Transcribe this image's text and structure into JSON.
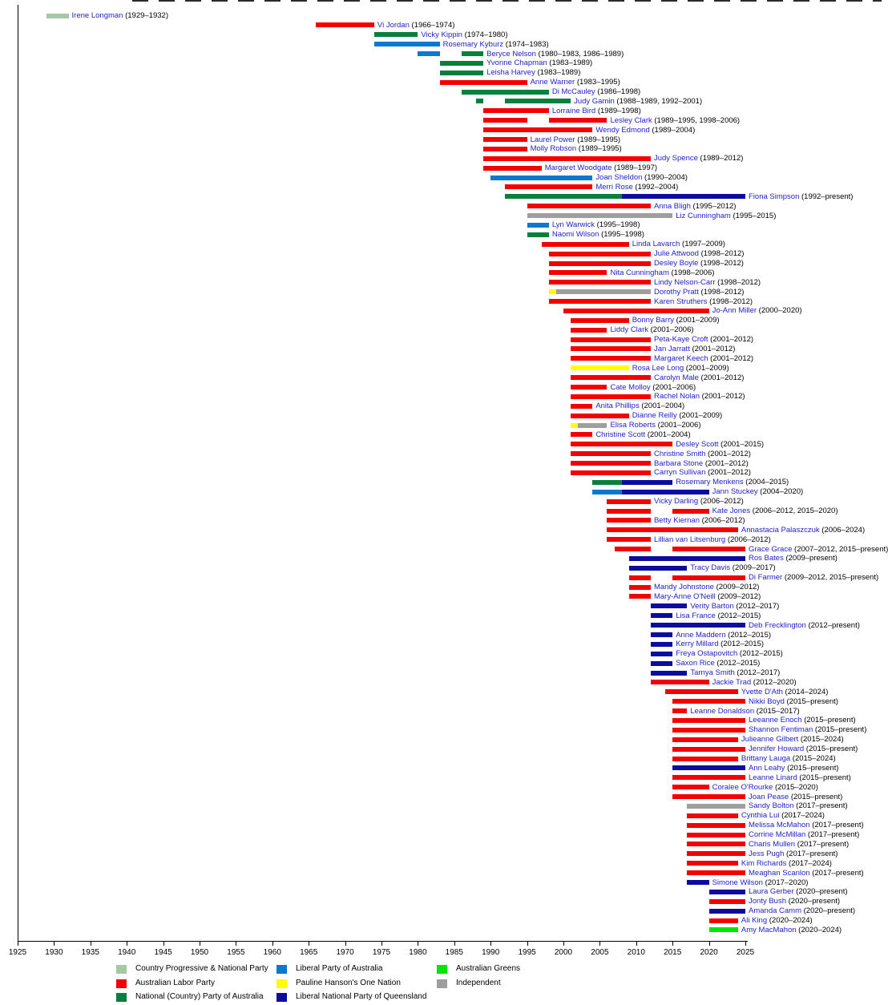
{
  "chart_data": {
    "type": "bar",
    "variant": "timeline-gantt",
    "grid": false,
    "legend_position": "bottom",
    "present_label": "present",
    "x_axis": {
      "start": 1925,
      "end": 2025,
      "tick_interval": 5,
      "ticks": [
        1925,
        1930,
        1935,
        1940,
        1945,
        1950,
        1955,
        1960,
        1965,
        1970,
        1975,
        1980,
        1985,
        1990,
        1995,
        2000,
        2005,
        2010,
        2015,
        2020,
        2025
      ]
    },
    "parties": {
      "CPNP": {
        "label": "Country Progressive & National Party",
        "color": "#a5c8a5"
      },
      "ALP": {
        "label": "Australian Labor Party",
        "color": "#f40000"
      },
      "NAT": {
        "label": "National (Country) Party of Australia",
        "color": "#07803e"
      },
      "LIB": {
        "label": "Liberal Party of Australia",
        "color": "#0d78cf"
      },
      "ONP": {
        "label": "Pauline Hanson's One Nation",
        "color": "#ffff00"
      },
      "LNP": {
        "label": "Liberal National Party of Queensland",
        "color": "#0c0c9e"
      },
      "GRN": {
        "label": "Australian Greens",
        "color": "#00e600"
      },
      "IND": {
        "label": "Independent",
        "color": "#9e9e9e"
      }
    },
    "legend_columns": [
      [
        "CPNP",
        "ALP",
        "NAT"
      ],
      [
        "LIB",
        "ONP",
        "LNP"
      ],
      [
        "GRN",
        "IND"
      ]
    ],
    "link_color": "#2222cc",
    "members": [
      {
        "n": "Irene Longman",
        "d": "1929–1932",
        "s": [
          [
            "CPNP",
            1929,
            1932
          ]
        ]
      },
      {
        "n": "Vi Jordan",
        "d": "1966–1974",
        "s": [
          [
            "ALP",
            1966,
            1974
          ]
        ]
      },
      {
        "n": "Vicky Kippin",
        "d": "1974–1980",
        "s": [
          [
            "NAT",
            1974,
            1980
          ]
        ]
      },
      {
        "n": "Rosemary Kyburz",
        "d": "1974–1983",
        "s": [
          [
            "LIB",
            1974,
            1983
          ]
        ]
      },
      {
        "n": "Beryce Nelson",
        "d": "1980–1983, 1986–1989",
        "s": [
          [
            "LIB",
            1980,
            1983
          ],
          [
            "NAT",
            1986,
            1989
          ]
        ]
      },
      {
        "n": "Yvonne Chapman",
        "d": "1983–1989",
        "s": [
          [
            "NAT",
            1983,
            1989
          ]
        ]
      },
      {
        "n": "Leisha Harvey",
        "d": "1983–1989",
        "s": [
          [
            "NAT",
            1983,
            1989
          ]
        ]
      },
      {
        "n": "Anne Warner",
        "d": "1983–1995",
        "s": [
          [
            "ALP",
            1983,
            1995
          ]
        ]
      },
      {
        "n": "Di McCauley",
        "d": "1986–1998",
        "s": [
          [
            "NAT",
            1986,
            1998
          ]
        ]
      },
      {
        "n": "Judy Gamin",
        "d": "1988–1989, 1992–2001",
        "s": [
          [
            "NAT",
            1988,
            1989
          ],
          [
            "NAT",
            1992,
            2001
          ]
        ]
      },
      {
        "n": "Lorraine Bird",
        "d": "1989–1998",
        "s": [
          [
            "ALP",
            1989,
            1998
          ]
        ]
      },
      {
        "n": "Lesley Clark",
        "d": "1989–1995, 1998–2006",
        "s": [
          [
            "ALP",
            1989,
            1995
          ],
          [
            "ALP",
            1998,
            2006
          ]
        ]
      },
      {
        "n": "Wendy Edmond",
        "d": "1989–2004",
        "s": [
          [
            "ALP",
            1989,
            2004
          ]
        ]
      },
      {
        "n": "Laurel Power",
        "d": "1989–1995",
        "s": [
          [
            "ALP",
            1989,
            1995
          ]
        ]
      },
      {
        "n": "Molly Robson",
        "d": "1989–1995",
        "s": [
          [
            "ALP",
            1989,
            1995
          ]
        ]
      },
      {
        "n": "Judy Spence",
        "d": "1989–2012",
        "s": [
          [
            "ALP",
            1989,
            2012
          ]
        ]
      },
      {
        "n": "Margaret Woodgate",
        "d": "1989–1997",
        "s": [
          [
            "ALP",
            1989,
            1997
          ]
        ]
      },
      {
        "n": "Joan Sheldon",
        "d": "1990–2004",
        "s": [
          [
            "LIB",
            1990,
            2004
          ]
        ]
      },
      {
        "n": "Merri Rose",
        "d": "1992–2004",
        "s": [
          [
            "ALP",
            1992,
            2004
          ]
        ]
      },
      {
        "n": "Fiona Simpson",
        "d": "1992–present",
        "s": [
          [
            "NAT",
            1992,
            2008
          ],
          [
            "LNP",
            2008,
            2025
          ]
        ]
      },
      {
        "n": "Anna Bligh",
        "d": "1995–2012",
        "s": [
          [
            "ALP",
            1995,
            2012
          ]
        ]
      },
      {
        "n": "Liz Cunningham",
        "d": "1995–2015",
        "s": [
          [
            "IND",
            1995,
            2015
          ]
        ]
      },
      {
        "n": "Lyn Warwick",
        "d": "1995–1998",
        "s": [
          [
            "LIB",
            1995,
            1998
          ]
        ]
      },
      {
        "n": "Naomi Wilson",
        "d": "1995–1998",
        "s": [
          [
            "NAT",
            1995,
            1998
          ]
        ]
      },
      {
        "n": "Linda Lavarch",
        "d": "1997–2009",
        "s": [
          [
            "ALP",
            1997,
            2009
          ]
        ]
      },
      {
        "n": "Julie Attwood",
        "d": "1998–2012",
        "s": [
          [
            "ALP",
            1998,
            2012
          ]
        ]
      },
      {
        "n": "Desley Boyle",
        "d": "1998–2012",
        "s": [
          [
            "ALP",
            1998,
            2012
          ]
        ]
      },
      {
        "n": "Nita Cunningham",
        "d": "1998–2006",
        "s": [
          [
            "ALP",
            1998,
            2006
          ]
        ]
      },
      {
        "n": "Lindy Nelson-Carr",
        "d": "1998–2012",
        "s": [
          [
            "ALP",
            1998,
            2012
          ]
        ]
      },
      {
        "n": "Dorothy Pratt",
        "d": "1998–2012",
        "s": [
          [
            "ONP",
            1998,
            1999
          ],
          [
            "IND",
            1999,
            2012
          ]
        ]
      },
      {
        "n": "Karen Struthers",
        "d": "1998–2012",
        "s": [
          [
            "ALP",
            1998,
            2012
          ]
        ]
      },
      {
        "n": "Jo-Ann Miller",
        "d": "2000–2020",
        "s": [
          [
            "ALP",
            2000,
            2020
          ]
        ]
      },
      {
        "n": "Bonny Barry",
        "d": "2001–2009",
        "s": [
          [
            "ALP",
            2001,
            2009
          ]
        ]
      },
      {
        "n": "Liddy Clark",
        "d": "2001–2006",
        "s": [
          [
            "ALP",
            2001,
            2006
          ]
        ]
      },
      {
        "n": "Peta-Kaye Croft",
        "d": "2001–2012",
        "s": [
          [
            "ALP",
            2001,
            2012
          ]
        ]
      },
      {
        "n": "Jan Jarratt",
        "d": "2001–2012",
        "s": [
          [
            "ALP",
            2001,
            2012
          ]
        ]
      },
      {
        "n": "Margaret Keech",
        "d": "2001–2012",
        "s": [
          [
            "ALP",
            2001,
            2012
          ]
        ]
      },
      {
        "n": "Rosa Lee Long",
        "d": "2001–2009",
        "s": [
          [
            "ONP",
            2001,
            2009
          ]
        ]
      },
      {
        "n": "Carolyn Male",
        "d": "2001–2012",
        "s": [
          [
            "ALP",
            2001,
            2012
          ]
        ]
      },
      {
        "n": "Cate Molloy",
        "d": "2001–2006",
        "s": [
          [
            "ALP",
            2001,
            2006
          ]
        ]
      },
      {
        "n": "Rachel Nolan",
        "d": "2001–2012",
        "s": [
          [
            "ALP",
            2001,
            2012
          ]
        ]
      },
      {
        "n": "Anita Phillips",
        "d": "2001–2004",
        "s": [
          [
            "ALP",
            2001,
            2004
          ]
        ]
      },
      {
        "n": "Dianne Reilly",
        "d": "2001–2009",
        "s": [
          [
            "ALP",
            2001,
            2009
          ]
        ]
      },
      {
        "n": "Elisa Roberts",
        "d": "2001–2006",
        "s": [
          [
            "ONP",
            2001,
            2002
          ],
          [
            "IND",
            2002,
            2006
          ]
        ]
      },
      {
        "n": "Christine Scott",
        "d": "2001–2004",
        "s": [
          [
            "ALP",
            2001,
            2004
          ]
        ]
      },
      {
        "n": "Desley Scott",
        "d": "2001–2015",
        "s": [
          [
            "ALP",
            2001,
            2015
          ]
        ]
      },
      {
        "n": "Christine Smith",
        "d": "2001–2012",
        "s": [
          [
            "ALP",
            2001,
            2012
          ]
        ]
      },
      {
        "n": "Barbara Stone",
        "d": "2001–2012",
        "s": [
          [
            "ALP",
            2001,
            2012
          ]
        ]
      },
      {
        "n": "Carryn Sullivan",
        "d": "2001–2012",
        "s": [
          [
            "ALP",
            2001,
            2012
          ]
        ]
      },
      {
        "n": "Rosemary Menkens",
        "d": "2004–2015",
        "s": [
          [
            "NAT",
            2004,
            2008
          ],
          [
            "LNP",
            2008,
            2015
          ]
        ]
      },
      {
        "n": "Jann Stuckey",
        "d": "2004–2020",
        "s": [
          [
            "LIB",
            2004,
            2008
          ],
          [
            "LNP",
            2008,
            2020
          ]
        ]
      },
      {
        "n": "Vicky Darling",
        "d": "2006–2012",
        "s": [
          [
            "ALP",
            2006,
            2012
          ]
        ]
      },
      {
        "n": "Kate Jones",
        "d": "2006–2012, 2015–2020",
        "s": [
          [
            "ALP",
            2006,
            2012
          ],
          [
            "ALP",
            2015,
            2020
          ]
        ]
      },
      {
        "n": "Betty Kiernan",
        "d": "2006–2012",
        "s": [
          [
            "ALP",
            2006,
            2012
          ]
        ]
      },
      {
        "n": "Annastacia Palaszczuk",
        "d": "2006–2024",
        "s": [
          [
            "ALP",
            2006,
            2024
          ]
        ]
      },
      {
        "n": "Lillian van Litsenburg",
        "d": "2006–2012",
        "s": [
          [
            "ALP",
            2006,
            2012
          ]
        ]
      },
      {
        "n": "Grace Grace",
        "d": "2007–2012, 2015–present",
        "s": [
          [
            "ALP",
            2007,
            2012
          ],
          [
            "ALP",
            2015,
            2025
          ]
        ]
      },
      {
        "n": "Ros Bates",
        "d": "2009–present",
        "s": [
          [
            "LNP",
            2009,
            2025
          ]
        ]
      },
      {
        "n": "Tracy Davis",
        "d": "2009–2017",
        "s": [
          [
            "LNP",
            2009,
            2017
          ]
        ]
      },
      {
        "n": "Di Farmer",
        "d": "2009–2012, 2015–present",
        "s": [
          [
            "ALP",
            2009,
            2012
          ],
          [
            "ALP",
            2015,
            2025
          ]
        ]
      },
      {
        "n": "Mandy Johnstone",
        "d": "2009–2012",
        "s": [
          [
            "ALP",
            2009,
            2012
          ]
        ]
      },
      {
        "n": "Mary-Anne O'Neill",
        "d": "2009–2012",
        "s": [
          [
            "ALP",
            2009,
            2012
          ]
        ]
      },
      {
        "n": "Verity Barton",
        "d": "2012–2017",
        "s": [
          [
            "LNP",
            2012,
            2017
          ]
        ]
      },
      {
        "n": "Lisa France",
        "d": "2012–2015",
        "s": [
          [
            "LNP",
            2012,
            2015
          ]
        ]
      },
      {
        "n": "Deb Frecklington",
        "d": "2012–present",
        "s": [
          [
            "LNP",
            2012,
            2025
          ]
        ]
      },
      {
        "n": "Anne Maddern",
        "d": "2012–2015",
        "s": [
          [
            "LNP",
            2012,
            2015
          ]
        ]
      },
      {
        "n": "Kerry Millard",
        "d": "2012–2015",
        "s": [
          [
            "LNP",
            2012,
            2015
          ]
        ]
      },
      {
        "n": "Freya Ostapovitch",
        "d": "2012–2015",
        "s": [
          [
            "LNP",
            2012,
            2015
          ]
        ]
      },
      {
        "n": "Saxon Rice",
        "d": "2012–2015",
        "s": [
          [
            "LNP",
            2012,
            2015
          ]
        ]
      },
      {
        "n": "Tarnya Smith",
        "d": "2012–2017",
        "s": [
          [
            "LNP",
            2012,
            2017
          ]
        ]
      },
      {
        "n": "Jackie Trad",
        "d": "2012–2020",
        "s": [
          [
            "ALP",
            2012,
            2020
          ]
        ]
      },
      {
        "n": "Yvette D'Ath",
        "d": "2014–2024",
        "s": [
          [
            "ALP",
            2014,
            2024
          ]
        ]
      },
      {
        "n": "Nikki Boyd",
        "d": "2015–present",
        "s": [
          [
            "ALP",
            2015,
            2025
          ]
        ]
      },
      {
        "n": "Leanne Donaldson",
        "d": "2015–2017",
        "s": [
          [
            "ALP",
            2015,
            2017
          ]
        ]
      },
      {
        "n": "Leeanne Enoch",
        "d": "2015–present",
        "s": [
          [
            "ALP",
            2015,
            2025
          ]
        ]
      },
      {
        "n": "Shannon Fentiman",
        "d": "2015–present",
        "s": [
          [
            "ALP",
            2015,
            2025
          ]
        ]
      },
      {
        "n": "Julieanne Gilbert",
        "d": "2015–2024",
        "s": [
          [
            "ALP",
            2015,
            2024
          ]
        ]
      },
      {
        "n": "Jennifer Howard",
        "d": "2015–present",
        "s": [
          [
            "ALP",
            2015,
            2025
          ]
        ]
      },
      {
        "n": "Brittany Lauga",
        "d": "2015–2024",
        "s": [
          [
            "ALP",
            2015,
            2024
          ]
        ]
      },
      {
        "n": "Ann Leahy",
        "d": "2015–present",
        "s": [
          [
            "LNP",
            2015,
            2025
          ]
        ]
      },
      {
        "n": "Leanne Linard",
        "d": "2015–present",
        "s": [
          [
            "ALP",
            2015,
            2025
          ]
        ]
      },
      {
        "n": "Coralee O'Rourke",
        "d": "2015–2020",
        "s": [
          [
            "ALP",
            2015,
            2020
          ]
        ]
      },
      {
        "n": "Joan Pease",
        "d": "2015–present",
        "s": [
          [
            "ALP",
            2015,
            2025
          ]
        ]
      },
      {
        "n": "Sandy Bolton",
        "d": "2017–present",
        "s": [
          [
            "IND",
            2017,
            2025
          ]
        ]
      },
      {
        "n": "Cynthia Lui",
        "d": "2017–2024",
        "s": [
          [
            "ALP",
            2017,
            2024
          ]
        ]
      },
      {
        "n": "Melissa McMahon",
        "d": "2017–present",
        "s": [
          [
            "ALP",
            2017,
            2025
          ]
        ]
      },
      {
        "n": "Corrine McMillan",
        "d": "2017–present",
        "s": [
          [
            "ALP",
            2017,
            2025
          ]
        ]
      },
      {
        "n": "Charis Mullen",
        "d": "2017–present",
        "s": [
          [
            "ALP",
            2017,
            2025
          ]
        ]
      },
      {
        "n": "Jess Pugh",
        "d": "2017–present",
        "s": [
          [
            "ALP",
            2017,
            2025
          ]
        ]
      },
      {
        "n": "Kim Richards",
        "d": "2017–2024",
        "s": [
          [
            "ALP",
            2017,
            2024
          ]
        ]
      },
      {
        "n": "Meaghan Scanlon",
        "d": "2017–present",
        "s": [
          [
            "ALP",
            2017,
            2025
          ]
        ]
      },
      {
        "n": "Simone Wilson",
        "d": "2017–2020",
        "s": [
          [
            "LNP",
            2017,
            2020
          ]
        ]
      },
      {
        "n": "Laura Gerber",
        "d": "2020–present",
        "s": [
          [
            "LNP",
            2020,
            2025
          ]
        ]
      },
      {
        "n": "Jonty Bush",
        "d": "2020–present",
        "s": [
          [
            "ALP",
            2020,
            2025
          ]
        ]
      },
      {
        "n": "Amanda Camm",
        "d": "2020–present",
        "s": [
          [
            "LNP",
            2020,
            2025
          ]
        ]
      },
      {
        "n": "Ali King",
        "d": "2020–2024",
        "s": [
          [
            "ALP",
            2020,
            2024
          ]
        ]
      },
      {
        "n": "Amy MacMahon",
        "d": "2020–2024",
        "s": [
          [
            "GRN",
            2020,
            2024
          ]
        ]
      }
    ]
  }
}
